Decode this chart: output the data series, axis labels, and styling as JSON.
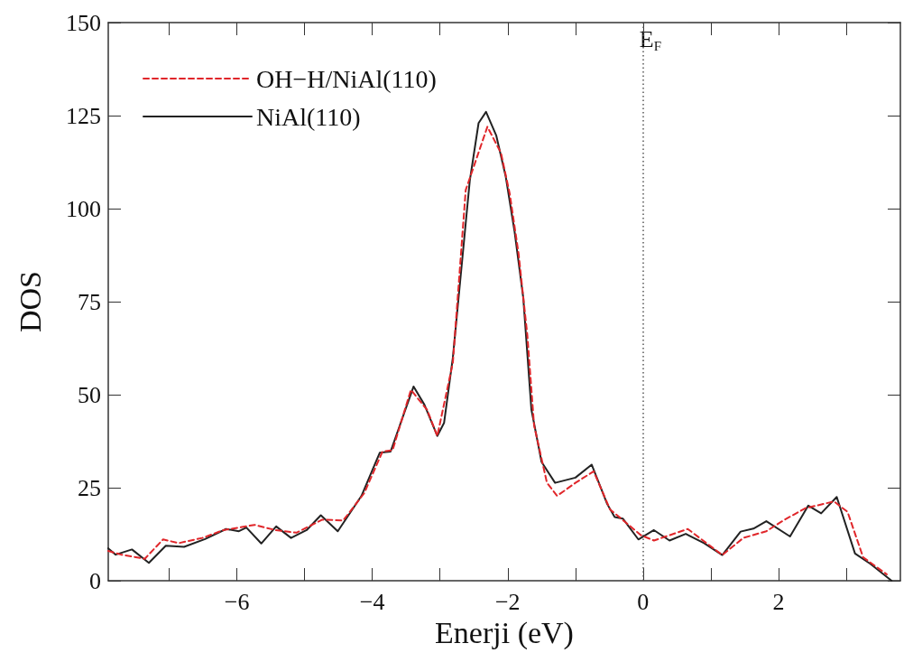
{
  "chart_data": {
    "type": "line",
    "xlabel": "Enerji (eV)",
    "ylabel": "DOS",
    "xlim": [
      -7.9,
      3.8
    ],
    "xticks": [
      {
        "value": -7,
        "label": null
      },
      {
        "value": -6,
        "label": "−6"
      },
      {
        "value": -5,
        "label": null
      },
      {
        "value": -4,
        "label": "−4"
      },
      {
        "value": -3,
        "label": null
      },
      {
        "value": -2,
        "label": "−2"
      },
      {
        "value": -1,
        "label": null
      },
      0,
      {
        "value": 1,
        "label": null
      },
      2,
      {
        "value": 3,
        "label": null
      }
    ],
    "ylim": [
      0,
      150
    ],
    "yticks": [
      0,
      25,
      50,
      75,
      100,
      125,
      150
    ],
    "grid": false,
    "legend": "top left",
    "marker": "none",
    "ref_lines": [
      {
        "axis": "x",
        "value": 0,
        "label": "E$_{F}$",
        "color": "#555555",
        "line_style": "dotted"
      }
    ],
    "series": [
      {
        "name": "OH−H/NiAl(110)",
        "color": "#e0262a",
        "line_style": "dashed",
        "x": [
          -7.9,
          -7.71,
          -7.36,
          -7.09,
          -6.86,
          -6.51,
          -6.2,
          -5.74,
          -5.43,
          -5.12,
          -4.74,
          -4.43,
          -4.12,
          -3.85,
          -3.7,
          -3.43,
          -3.19,
          -3.04,
          -2.81,
          -2.62,
          -2.3,
          -2.1,
          -1.97,
          -1.84,
          -1.71,
          -1.61,
          -1.42,
          -1.27,
          -1,
          -0.73,
          -0.49,
          -0.26,
          -0.03,
          0.16,
          0.66,
          1.17,
          1.48,
          1.82,
          2.09,
          2.4,
          2.82,
          3.02,
          3.25,
          3.6
        ],
        "values": [
          8,
          7,
          5.9,
          11.1,
          10.1,
          11.5,
          13.6,
          15,
          13.6,
          12.9,
          16.4,
          16.2,
          23.5,
          34.7,
          35.1,
          51.3,
          45.9,
          38.9,
          58.6,
          105,
          122,
          115,
          104,
          88,
          66,
          41.7,
          26.3,
          22.8,
          26.3,
          29.4,
          19.2,
          15.7,
          12.2,
          10.8,
          13.9,
          6.9,
          11.5,
          13.3,
          16.4,
          19.5,
          21.3,
          18.5,
          6.3,
          1.7
        ]
      },
      {
        "name": "NiAl(110)",
        "color": "#222222",
        "line_style": "solid",
        "x": [
          -7.9,
          -7.79,
          -7.55,
          -7.3,
          -7.05,
          -6.78,
          -6.47,
          -6.16,
          -5.97,
          -5.86,
          -5.64,
          -5.42,
          -5.2,
          -4.97,
          -4.76,
          -4.51,
          -4.16,
          -3.89,
          -3.73,
          -3.39,
          -3.23,
          -3.04,
          -2.94,
          -2.81,
          -2.56,
          -2.43,
          -2.32,
          -2.17,
          -2.03,
          -1.9,
          -1.77,
          -1.65,
          -1.5,
          -1.3,
          -1,
          -0.76,
          -0.53,
          -0.42,
          -0.3,
          -0.07,
          0.16,
          0.39,
          0.63,
          0.9,
          1.17,
          1.44,
          1.63,
          1.82,
          2.17,
          2.44,
          2.63,
          2.86,
          3.13,
          3.36,
          3.67
        ],
        "values": [
          8.7,
          7,
          8.4,
          4.8,
          9.4,
          9.1,
          11.2,
          13.9,
          13.3,
          14.3,
          10,
          14.6,
          11.5,
          13.6,
          17.6,
          13.3,
          22.8,
          34.4,
          34.7,
          52.2,
          47.3,
          38.9,
          42.4,
          60,
          107.5,
          123,
          126,
          119.7,
          108.7,
          94,
          76,
          46,
          31.9,
          26.3,
          27.7,
          31.2,
          20.6,
          17.1,
          16.7,
          11.1,
          13.6,
          10.8,
          12.6,
          10.1,
          6.9,
          13.2,
          14,
          16,
          11.9,
          20.2,
          18.1,
          22.5,
          7.3,
          4.5,
          0
        ]
      }
    ]
  }
}
